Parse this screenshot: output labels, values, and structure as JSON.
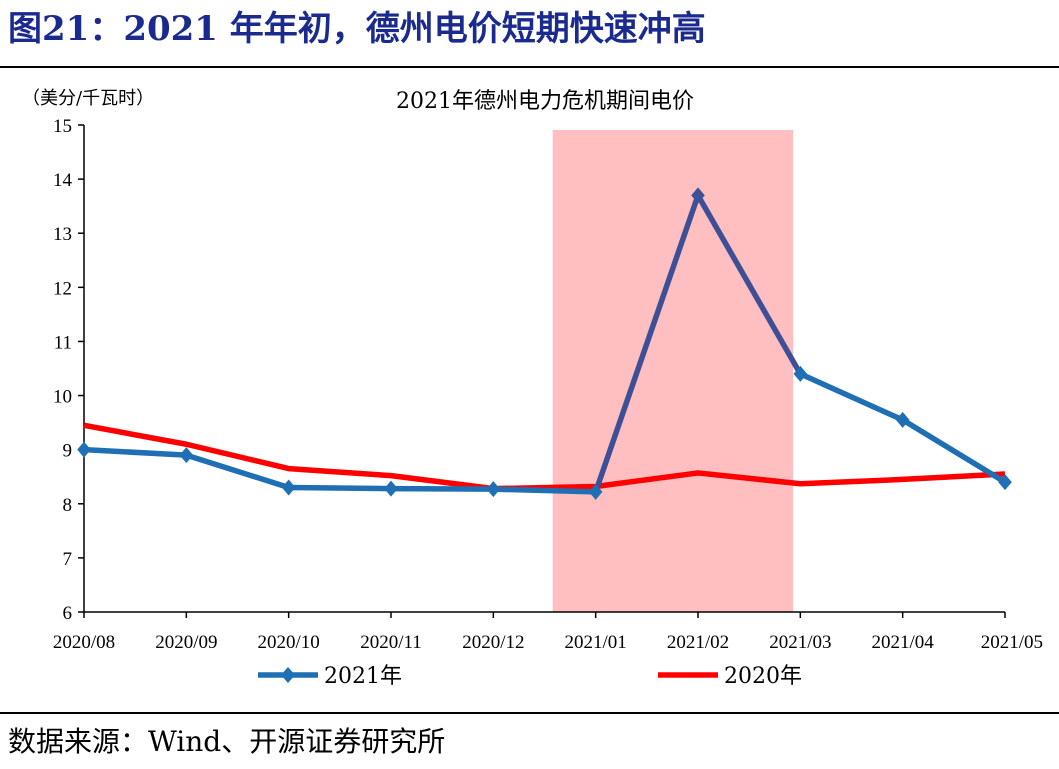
{
  "header": {
    "figure_title": "图21：2021 年年初，德州电价短期快速冲高"
  },
  "footer": {
    "source": "数据来源：Wind、开源证券研究所"
  },
  "colors": {
    "series_2021": "#1f6fb5",
    "series_2021_spike": "#3d4f96",
    "series_2020": "#ff0000",
    "highlight": "#ffbfc1",
    "title": "#1a2a8f"
  },
  "chart_data": {
    "type": "line",
    "title": "2021年德州电力危机期间电价",
    "ylabel": "（美分/千瓦时）",
    "xlabel": "",
    "categories": [
      "2020/08",
      "2020/09",
      "2020/10",
      "2020/11",
      "2020/12",
      "2021/01",
      "2021/02",
      "2021/03",
      "2021/04",
      "2021/05"
    ],
    "ylim": [
      6,
      15
    ],
    "yticks": [
      6,
      7,
      8,
      9,
      10,
      11,
      12,
      13,
      14,
      15
    ],
    "grid": false,
    "legend_position": "bottom",
    "highlight_range": [
      "2020/12",
      "2021/03"
    ],
    "series": [
      {
        "name": "2021年",
        "marker": "diamond",
        "values": [
          9.0,
          8.9,
          8.3,
          8.28,
          8.27,
          8.22,
          13.7,
          10.4,
          9.55,
          8.4
        ]
      },
      {
        "name": "2020年",
        "marker": "none",
        "values": [
          9.45,
          9.1,
          8.65,
          8.52,
          8.28,
          8.32,
          8.57,
          8.37,
          8.45,
          8.55
        ]
      }
    ]
  }
}
